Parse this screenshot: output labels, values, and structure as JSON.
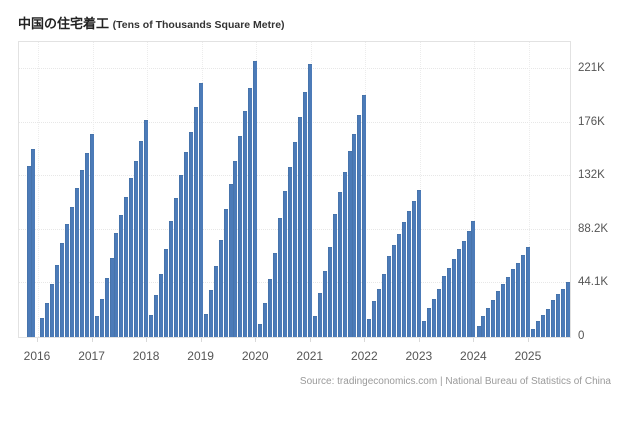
{
  "header": {
    "title": "中国の住宅着工",
    "units": "(Tens of Thousands Square Metre)"
  },
  "footer": {
    "source": "Source: tradingeconomics.com | National Bureau of Statistics of China"
  },
  "colors": {
    "bar": "#4c7bb8",
    "grid": "#e7e7e7",
    "plot_border": "#e2e2e2",
    "axis_label": "#555555",
    "title": "#222222",
    "source_text": "#9a9a9a",
    "background": "#ffffff"
  },
  "chart_data": {
    "type": "bar",
    "title": "中国の住宅着工",
    "subtitle": "(Tens of Thousands Square Metre)",
    "ylabel": "Tens of Thousands Square Metre",
    "xlabel": "",
    "legend_position": "none",
    "grid": "dotted",
    "ylim": [
      0,
      244000
    ],
    "ytick_step_value": 44100,
    "ytick_labels": [
      "0",
      "44.1K",
      "88.2K",
      "132K",
      "176K",
      "221K"
    ],
    "x_tick_labels": [
      "2016",
      "2017",
      "2018",
      "2019",
      "2020",
      "2021",
      "2022",
      "2023",
      "2024",
      "2025"
    ],
    "description": "Cumulative year-to-date floor space started, monthly bars grouped by year",
    "groups": [
      {
        "year": "2015",
        "values": [
          140569,
          154454
        ]
      },
      {
        "year": "2016",
        "values": [
          15602,
          28281,
          43445,
          59522,
          77537,
          92944,
          106834,
          122655,
          137375,
          151303,
          166928
        ]
      },
      {
        "year": "2017",
        "values": [
          17238,
          31560,
          48240,
          65179,
          85720,
          100371,
          114996,
          131033,
          145127,
          161679,
          178654
        ]
      },
      {
        "year": "2018",
        "values": [
          17746,
          34615,
          51779,
          72190,
          95817,
          114781,
          133293,
          152583,
          168754,
          188895,
          209342
        ]
      },
      {
        "year": "2019",
        "values": [
          18814,
          38728,
          58552,
          79784,
          105509,
          125716,
          145133,
          165707,
          185634,
          205194,
          227154
        ]
      },
      {
        "year": "2020",
        "values": [
          10370,
          28203,
          47768,
          69533,
          97536,
          120032,
          139917,
          160090,
          180718,
          201310,
          224433
        ]
      },
      {
        "year": "2021",
        "values": [
          17037,
          36163,
          53905,
          74349,
          101288,
          118948,
          135502,
          152944,
          166736,
          182820,
          198895
        ]
      },
      {
        "year": "2022",
        "values": [
          14967,
          29838,
          39739,
          51628,
          66423,
          76067,
          85062,
          94767,
          103722,
          111632,
          120587
        ]
      },
      {
        "year": "2023",
        "values": [
          13567,
          24121,
          31220,
          39723,
          49880,
          56969,
          63891,
          72123,
          79177,
          87456,
          95376
        ]
      },
      {
        "year": "2024",
        "values": [
          9429,
          17283,
          23510,
          30090,
          38023,
          43733,
          49465,
          56051,
          61227,
          67308,
          73893
        ]
      },
      {
        "year": "2025",
        "values": [
          6614,
          12996,
          17836,
          23184,
          30364,
          35206,
          39801,
          45399
        ]
      }
    ]
  }
}
